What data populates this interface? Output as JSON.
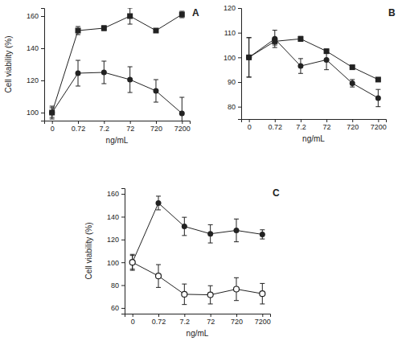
{
  "chart_data": [
    {
      "type": "line",
      "title": "A",
      "ylabel": "Cell viability (%)",
      "xlabel": "ng/mL",
      "categories": [
        "0",
        "0.72",
        "7.2",
        "72",
        "720",
        "7200"
      ],
      "ylim": [
        95,
        165
      ],
      "yticks": [
        100,
        120,
        140,
        160
      ],
      "series": [
        {
          "color": "#222222",
          "marker": "square",
          "values": [
            100,
            151,
            152.5,
            160,
            151,
            161
          ],
          "errors": [
            3,
            2.5,
            1.5,
            5,
            1,
            2
          ]
        },
        {
          "color": "#222222",
          "marker": "circle",
          "values": [
            100,
            124.5,
            125,
            120.5,
            113.5,
            99.5
          ],
          "errors": [
            4,
            8,
            7,
            8,
            7,
            10
          ]
        }
      ]
    },
    {
      "type": "line",
      "title": "B",
      "xlabel": "ng/mL",
      "categories": [
        "0",
        "0.72",
        "7.2",
        "72",
        "720",
        "7200"
      ],
      "ylim": [
        75,
        120
      ],
      "yticks": [
        80,
        90,
        100,
        110,
        120
      ],
      "series": [
        {
          "color": "#222222",
          "marker": "square",
          "values": [
            100,
            106.5,
            107.5,
            102.5,
            96,
            91
          ],
          "errors": [
            8,
            1.5,
            1,
            0.8,
            0.5,
            0.5
          ]
        },
        {
          "color": "#222222",
          "marker": "circle",
          "values": [
            100,
            107.5,
            96.5,
            99,
            89.5,
            83.5
          ],
          "errors": [
            8,
            3.5,
            3,
            4,
            1.5,
            3.5
          ]
        }
      ]
    },
    {
      "type": "line",
      "title": "C",
      "ylabel": "Cell viability (%)",
      "xlabel": "ng/mL",
      "categories": [
        "0",
        "0.72",
        "7.2",
        "72",
        "720",
        "7200"
      ],
      "ylim": [
        55,
        165
      ],
      "yticks": [
        60,
        80,
        100,
        120,
        140,
        160
      ],
      "series": [
        {
          "color": "#222222",
          "marker": "circle",
          "values": [
            100,
            152,
            131.5,
            125,
            128,
            124.5
          ],
          "errors": [
            7,
            6,
            8,
            8,
            10,
            4
          ]
        },
        {
          "color": "#222222",
          "marker": "open-circle",
          "values": [
            100,
            88,
            72,
            71.5,
            76.5,
            72.5
          ],
          "errors": [
            6,
            10,
            9,
            8,
            10,
            9
          ]
        }
      ]
    }
  ]
}
